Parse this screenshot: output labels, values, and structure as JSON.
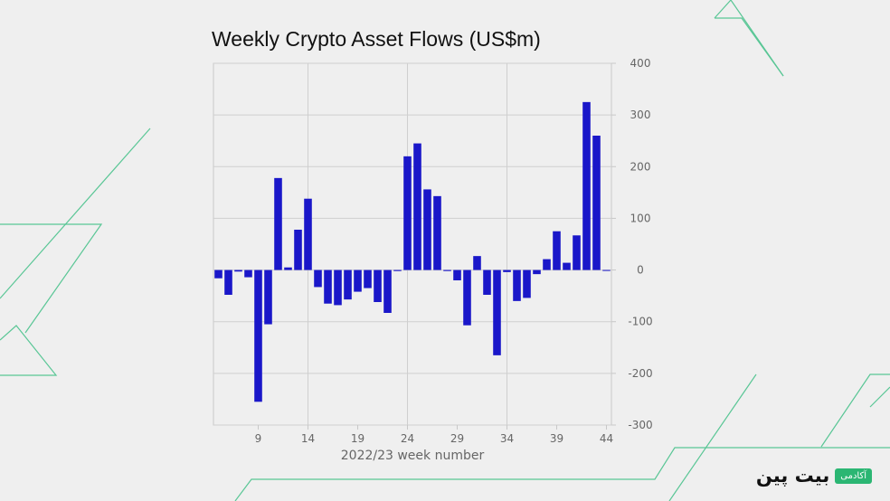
{
  "chart_data": {
    "type": "bar",
    "title": "Weekly Crypto Asset Flows (US$m)",
    "xlabel": "2022/23 week number",
    "ylabel": "",
    "ylim": [
      -300,
      400
    ],
    "yticks": [
      400,
      300,
      200,
      100,
      0,
      -100,
      -200,
      -300
    ],
    "xticks": [
      9,
      14,
      19,
      24,
      29,
      34,
      39,
      44
    ],
    "x_vertical_gridlines": [
      14,
      24,
      34
    ],
    "grid": true,
    "y_axis_position": "right",
    "bar_color": "#1a17c9",
    "x": [
      5,
      6,
      7,
      8,
      9,
      10,
      11,
      12,
      13,
      14,
      15,
      16,
      17,
      18,
      19,
      20,
      21,
      22,
      23,
      24,
      25,
      26,
      27,
      28,
      29,
      30,
      31,
      32,
      33,
      34,
      35,
      36,
      37,
      38,
      39,
      40,
      41,
      42,
      43,
      44
    ],
    "values": [
      -16,
      -48,
      -3,
      -14,
      -255,
      -105,
      178,
      5,
      78,
      138,
      -33,
      -65,
      -68,
      -57,
      -42,
      -35,
      -62,
      -83,
      -2,
      220,
      245,
      156,
      143,
      -2,
      -20,
      -107,
      27,
      -48,
      -165,
      -4,
      -60,
      -54,
      -8,
      21,
      75,
      14,
      67,
      325,
      260,
      0
    ]
  },
  "brand": {
    "logo_text": "بیت پین",
    "badge_text": "آکادمی"
  },
  "colors": {
    "background": "#efefef",
    "accent": "#2bb673",
    "bars": "#1a17c9"
  }
}
